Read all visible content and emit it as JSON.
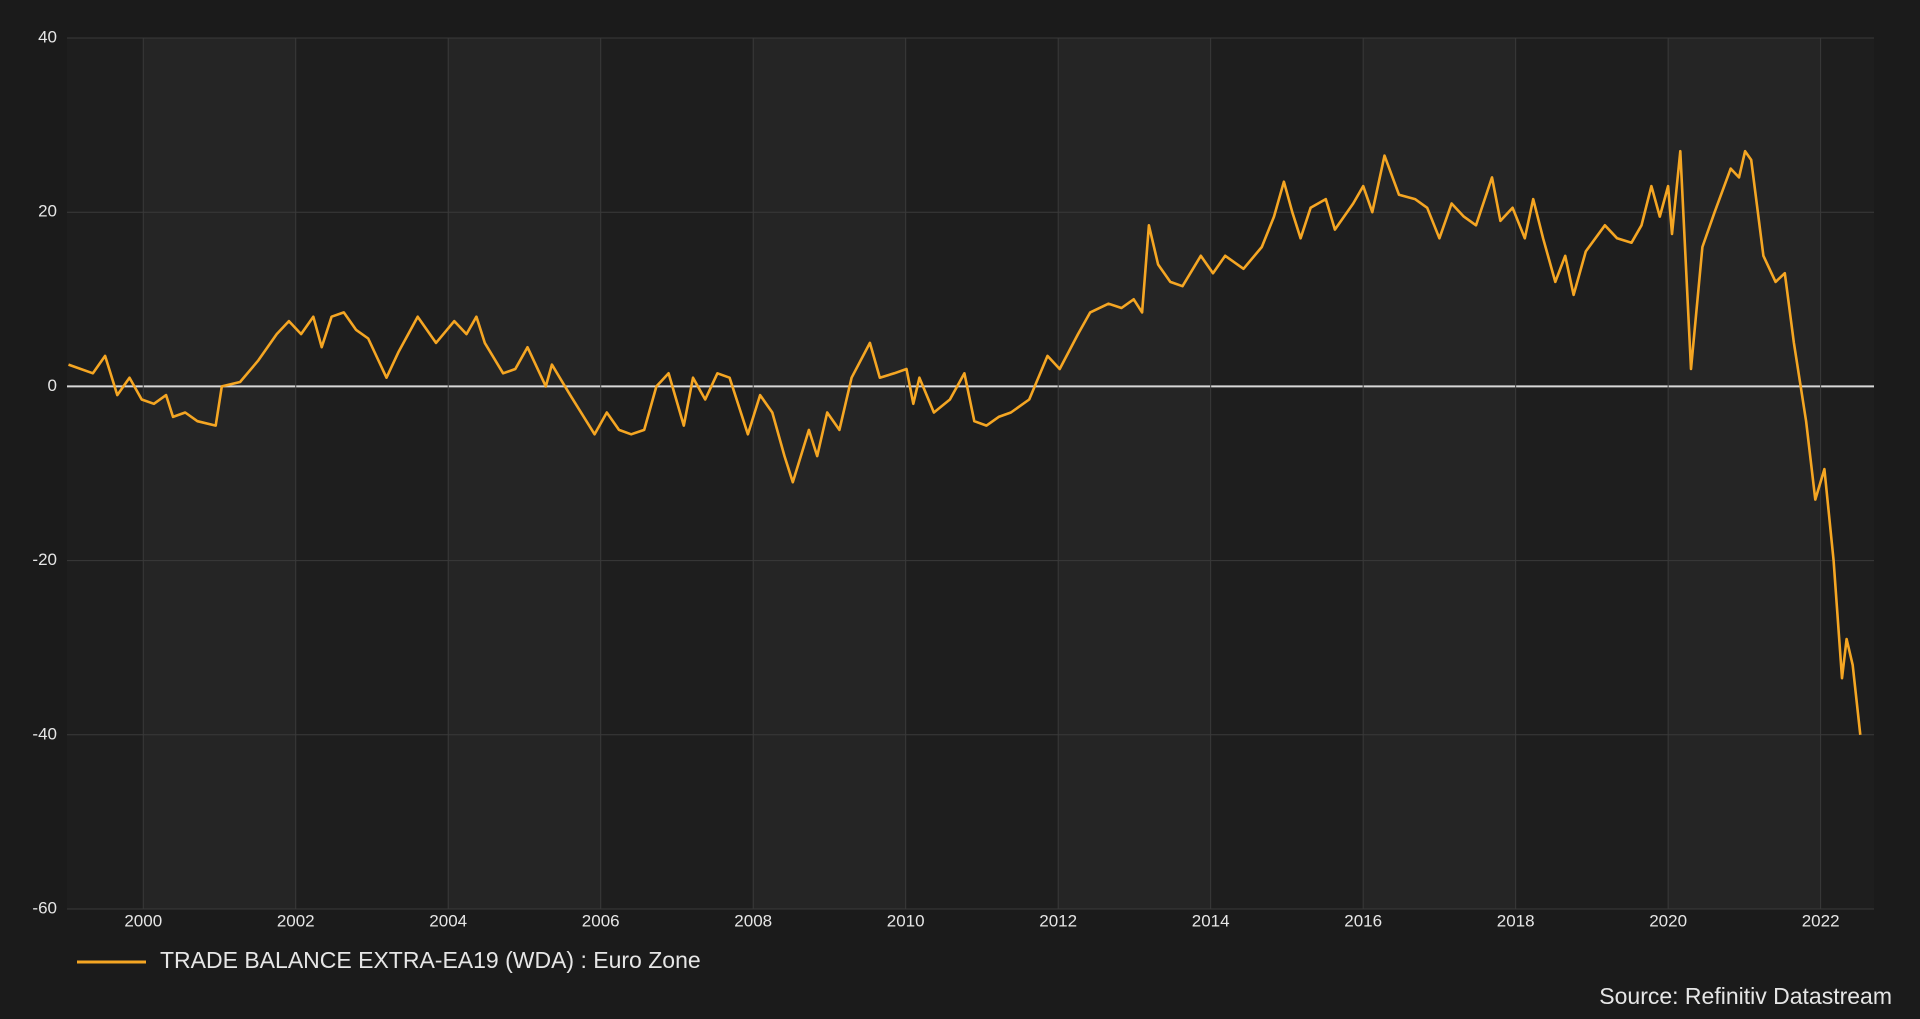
{
  "chart_data": {
    "type": "line",
    "source": "Source: Refinitiv Datastream",
    "x": [
      1999.02,
      1999.34,
      1999.5,
      1999.66,
      1999.82,
      1999.98,
      2000.14,
      2000.3,
      2000.39,
      2000.55,
      2000.71,
      2000.95,
      2001.03,
      2001.27,
      2001.51,
      2001.75,
      2001.91,
      2002.07,
      2002.23,
      2002.34,
      2002.47,
      2002.63,
      2002.79,
      2002.95,
      2003.19,
      2003.35,
      2003.6,
      2003.84,
      2004.08,
      2004.24,
      2004.37,
      2004.48,
      2004.72,
      2004.88,
      2005.04,
      2005.28,
      2005.36,
      2005.6,
      2005.92,
      2006.08,
      2006.24,
      2006.4,
      2006.57,
      2006.73,
      2006.89,
      2007.09,
      2007.21,
      2007.37,
      2007.53,
      2007.69,
      2007.93,
      2008.09,
      2008.25,
      2008.41,
      2008.52,
      2008.73,
      2008.84,
      2008.97,
      2009.13,
      2009.29,
      2009.53,
      2009.66,
      2009.85,
      2010.01,
      2010.1,
      2010.18,
      2010.37,
      2010.58,
      2010.77,
      2010.9,
      2011.06,
      2011.22,
      2011.38,
      2011.62,
      2011.86,
      2012.02,
      2012.26,
      2012.42,
      2012.66,
      2012.83,
      2012.99,
      2013.1,
      2013.19,
      2013.31,
      2013.47,
      2013.63,
      2013.87,
      2014.03,
      2014.19,
      2014.43,
      2014.67,
      2014.83,
      2014.96,
      2015.07,
      2015.18,
      2015.31,
      2015.51,
      2015.63,
      2015.87,
      2016.0,
      2016.12,
      2016.28,
      2016.47,
      2016.68,
      2016.84,
      2017.0,
      2017.16,
      2017.32,
      2017.48,
      2017.69,
      2017.8,
      2017.96,
      2018.12,
      2018.23,
      2018.36,
      2018.52,
      2018.65,
      2018.76,
      2018.92,
      2019.17,
      2019.33,
      2019.52,
      2019.65,
      2019.78,
      2019.89,
      2020.0,
      2020.05,
      2020.16,
      2020.3,
      2020.45,
      2020.61,
      2020.82,
      2020.93,
      2021.01,
      2021.09,
      2021.25,
      2021.41,
      2021.53,
      2021.65,
      2021.81,
      2021.93,
      2022.05,
      2022.17,
      2022.28,
      2022.34,
      2022.42,
      2022.52
    ],
    "series": [
      {
        "name": "TRADE BALANCE EXTRA-EA19 (WDA) : Euro Zone",
        "color": "#f5a623",
        "values": [
          2.5,
          1.5,
          3.5,
          -1,
          1,
          -1.5,
          -2,
          -1,
          -3.5,
          -3,
          -4,
          -4.5,
          0,
          0.5,
          3,
          6,
          7.5,
          6,
          8,
          4.5,
          8,
          8.5,
          6.5,
          5.5,
          1,
          4,
          8,
          5,
          7.5,
          6,
          8,
          5,
          1.5,
          2,
          4.5,
          0,
          2.5,
          -1,
          -5.5,
          -3,
          -5,
          -5.5,
          -5,
          0,
          1.5,
          -4.5,
          1,
          -1.5,
          1.5,
          1,
          -5.5,
          -1,
          -3,
          -8,
          -11,
          -5,
          -8,
          -3,
          -5,
          1,
          5,
          1,
          1.5,
          2,
          -2,
          1,
          -3,
          -1.5,
          1.5,
          -4,
          -4.5,
          -3.5,
          -3,
          -1.5,
          3.5,
          2,
          6,
          8.5,
          9.5,
          9,
          10,
          8.5,
          18.5,
          14,
          12,
          11.5,
          15,
          13,
          15,
          13.5,
          16,
          19.5,
          23.5,
          20,
          17,
          20.5,
          21.5,
          18,
          21,
          23,
          20,
          26.5,
          22,
          21.5,
          20.5,
          17,
          21,
          19.5,
          18.5,
          24,
          19,
          20.5,
          17,
          21.5,
          17,
          12,
          15,
          10.5,
          15.5,
          18.5,
          17,
          16.5,
          18.5,
          23,
          19.5,
          23,
          17.5,
          27,
          2,
          16,
          20,
          25,
          24,
          27,
          26,
          15,
          12,
          13,
          5,
          -4,
          -13,
          -9.5,
          -20,
          -33.5,
          -29,
          -32,
          -40
        ]
      }
    ],
    "xlim": [
      1999,
      2022.7
    ],
    "xticks": [
      2000,
      2002,
      2004,
      2006,
      2008,
      2010,
      2012,
      2014,
      2016,
      2018,
      2020,
      2022
    ],
    "ylim": [
      -60,
      40
    ],
    "yticks": [
      40,
      20,
      0,
      -20,
      -40,
      -60
    ],
    "grid": true,
    "legend": "bottom-left"
  }
}
